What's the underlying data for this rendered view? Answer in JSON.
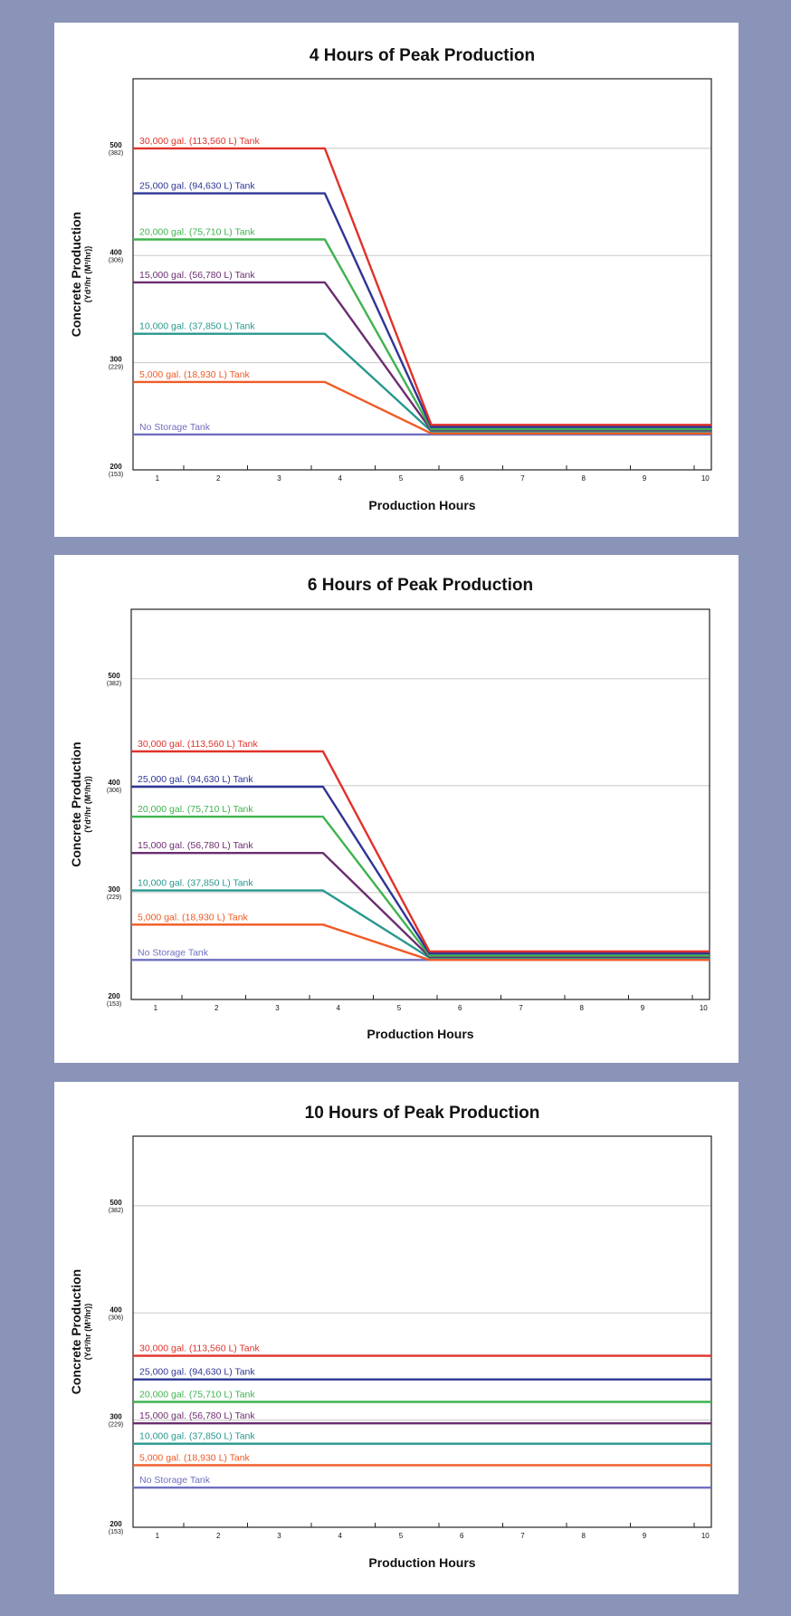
{
  "palette": {
    "background": "#8a93b8",
    "panel": "#ffffff",
    "grid": "#c8c8c8",
    "frame": "#222222"
  },
  "chart_data": [
    {
      "type": "line",
      "title": "4 Hours of Peak Production",
      "xlabel": "Production Hours",
      "ylabel": "Concrete Production",
      "ylabel_sub": "(Yd³/hr (M³/hr))",
      "xlim": [
        0.6,
        10.1
      ],
      "ylim": [
        200,
        565
      ],
      "x_ticks": [
        "1",
        "2",
        "3",
        "4",
        "5",
        "6",
        "7",
        "8",
        "9",
        "10"
      ],
      "y_ticks": [
        {
          "value": 200,
          "label": "200",
          "sub": "(153)"
        },
        {
          "value": 300,
          "label": "300",
          "sub": "(229)"
        },
        {
          "value": 400,
          "label": "400",
          "sub": "(306)"
        },
        {
          "value": 500,
          "label": "500",
          "sub": "(382)"
        }
      ],
      "grid": "horizontal",
      "series": [
        {
          "name": "30,000 gal. (113,560 L) Tank",
          "color": "#e0322b",
          "x": [
            0.6,
            3.75,
            5.5,
            10.1
          ],
          "y": [
            500,
            500,
            242,
            242
          ]
        },
        {
          "name": "25,000 gal. (94,630 L) Tank",
          "color": "#2e3595",
          "x": [
            0.6,
            3.75,
            5.5,
            10.1
          ],
          "y": [
            458,
            458,
            240,
            240
          ]
        },
        {
          "name": "20,000 gal. (75,710 L) Tank",
          "color": "#3fb34f",
          "x": [
            0.6,
            3.75,
            5.5,
            10.1
          ],
          "y": [
            415,
            415,
            238,
            238
          ]
        },
        {
          "name": "15,000 gal. (56,780 L) Tank",
          "color": "#6b2d6f",
          "x": [
            0.6,
            3.75,
            5.5,
            10.1
          ],
          "y": [
            375,
            375,
            237,
            237
          ]
        },
        {
          "name": "10,000 gal. (37,850 L) Tank",
          "color": "#27988e",
          "x": [
            0.6,
            3.75,
            5.5,
            10.1
          ],
          "y": [
            327,
            327,
            236,
            236
          ]
        },
        {
          "name": "5,000 gal. (18,930 L) Tank",
          "color": "#f05a24",
          "x": [
            0.6,
            3.75,
            5.5,
            10.1
          ],
          "y": [
            282,
            282,
            234,
            234
          ]
        },
        {
          "name": "No Storage Tank",
          "color": "#6f6fbf",
          "x": [
            0.6,
            10.1
          ],
          "y": [
            233,
            233
          ]
        }
      ]
    },
    {
      "type": "line",
      "title": "6 Hours of Peak Production",
      "xlabel": "Production Hours",
      "ylabel": "Concrete Production",
      "ylabel_sub": "(Yd³/hr (M³/hr))",
      "xlim": [
        0.6,
        10.1
      ],
      "ylim": [
        200,
        565
      ],
      "x_ticks": [
        "1",
        "2",
        "3",
        "4",
        "5",
        "6",
        "7",
        "8",
        "9",
        "10"
      ],
      "y_ticks": [
        {
          "value": 200,
          "label": "200",
          "sub": "(153)"
        },
        {
          "value": 300,
          "label": "300",
          "sub": "(229)"
        },
        {
          "value": 400,
          "label": "400",
          "sub": "(306)"
        },
        {
          "value": 500,
          "label": "500",
          "sub": "(382)"
        }
      ],
      "grid": "horizontal",
      "series": [
        {
          "name": "30,000 gal. (113,560 L) Tank",
          "color": "#e0322b",
          "x": [
            0.6,
            3.75,
            5.5,
            10.1
          ],
          "y": [
            432,
            432,
            245,
            245
          ]
        },
        {
          "name": "25,000 gal. (94,630 L) Tank",
          "color": "#2e3595",
          "x": [
            0.6,
            3.75,
            5.5,
            10.1
          ],
          "y": [
            399,
            399,
            243,
            243
          ]
        },
        {
          "name": "20,000 gal. (75,710 L) Tank",
          "color": "#3fb34f",
          "x": [
            0.6,
            3.75,
            5.5,
            10.1
          ],
          "y": [
            371,
            371,
            241,
            241
          ]
        },
        {
          "name": "15,000 gal. (56,780 L) Tank",
          "color": "#6b2d6f",
          "x": [
            0.6,
            3.75,
            5.5,
            10.1
          ],
          "y": [
            337,
            337,
            240,
            240
          ]
        },
        {
          "name": "10,000 gal. (37,850 L) Tank",
          "color": "#27988e",
          "x": [
            0.6,
            3.75,
            5.5,
            10.1
          ],
          "y": [
            302,
            302,
            239,
            239
          ]
        },
        {
          "name": "5,000 gal. (18,930 L) Tank",
          "color": "#f05a24",
          "x": [
            0.6,
            3.75,
            5.5,
            10.1
          ],
          "y": [
            270,
            270,
            237,
            237
          ]
        },
        {
          "name": "No Storage Tank",
          "color": "#6f6fbf",
          "x": [
            0.6,
            10.1
          ],
          "y": [
            237,
            237
          ]
        }
      ]
    },
    {
      "type": "line",
      "title": "10 Hours of Peak Production",
      "xlabel": "Production Hours",
      "ylabel": "Concrete Production",
      "ylabel_sub": "(Yd³/hr (M³/hr))",
      "xlim": [
        0.6,
        10.1
      ],
      "ylim": [
        200,
        565
      ],
      "x_ticks": [
        "1",
        "2",
        "3",
        "4",
        "5",
        "6",
        "7",
        "8",
        "9",
        "10"
      ],
      "y_ticks": [
        {
          "value": 200,
          "label": "200",
          "sub": "(153)"
        },
        {
          "value": 300,
          "label": "300",
          "sub": "(229)"
        },
        {
          "value": 400,
          "label": "400",
          "sub": "(306)"
        },
        {
          "value": 500,
          "label": "500",
          "sub": "(382)"
        }
      ],
      "grid": "horizontal",
      "series": [
        {
          "name": "30,000 gal. (113,560 L) Tank",
          "color": "#e0322b",
          "x": [
            0.6,
            10.1
          ],
          "y": [
            360,
            360
          ]
        },
        {
          "name": "25,000 gal. (94,630 L) Tank",
          "color": "#2e3595",
          "x": [
            0.6,
            10.1
          ],
          "y": [
            338,
            338
          ]
        },
        {
          "name": "20,000 gal. (75,710 L) Tank",
          "color": "#3fb34f",
          "x": [
            0.6,
            10.1
          ],
          "y": [
            317,
            317
          ]
        },
        {
          "name": "15,000 gal. (56,780 L) Tank",
          "color": "#6b2d6f",
          "x": [
            0.6,
            10.1
          ],
          "y": [
            297,
            297
          ]
        },
        {
          "name": "10,000 gal. (37,850 L) Tank",
          "color": "#27988e",
          "x": [
            0.6,
            10.1
          ],
          "y": [
            278,
            278
          ]
        },
        {
          "name": "5,000 gal. (18,930 L) Tank",
          "color": "#f05a24",
          "x": [
            0.6,
            10.1
          ],
          "y": [
            258,
            258
          ]
        },
        {
          "name": "No Storage Tank",
          "color": "#6f6fbf",
          "x": [
            0.6,
            10.1
          ],
          "y": [
            237,
            237
          ]
        }
      ]
    }
  ]
}
